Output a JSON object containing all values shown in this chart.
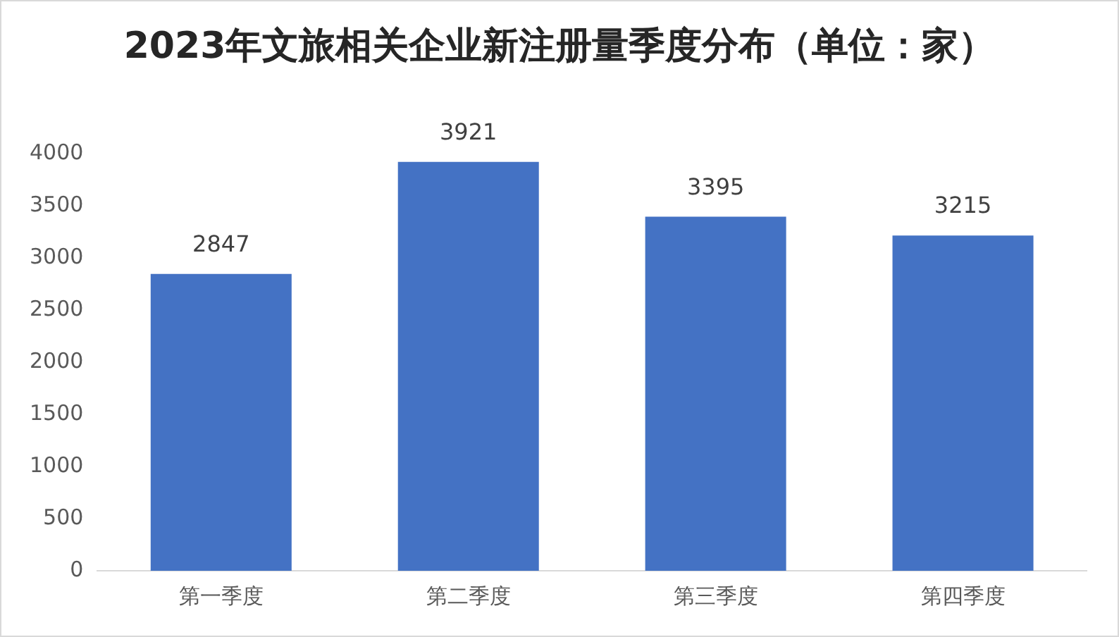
{
  "chart_data": {
    "type": "bar",
    "title": "2023年文旅相关企业新注册量季度分布（单位：家）",
    "categories": [
      "第一季度",
      "第二季度",
      "第三季度",
      "第四季度"
    ],
    "values": [
      2847,
      3921,
      3395,
      3215
    ],
    "color": "#4472c4",
    "ylim": [
      0,
      4000
    ],
    "yticks": [
      0,
      500,
      1000,
      1500,
      2000,
      2500,
      3000,
      3500,
      4000
    ],
    "grid": false,
    "data_labels": true
  }
}
